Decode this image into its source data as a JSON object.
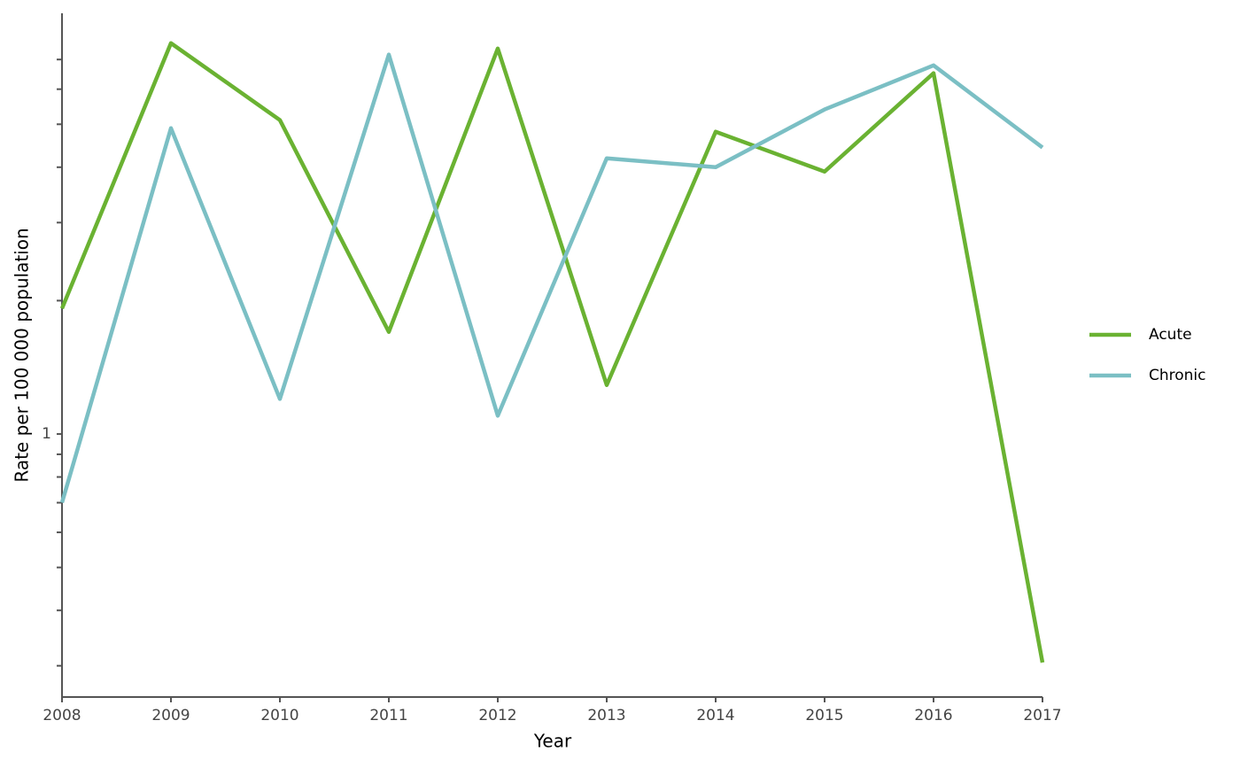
{
  "chart_data": {
    "type": "line",
    "x": [
      2008,
      2009,
      2010,
      2011,
      2012,
      2013,
      2014,
      2015,
      2016,
      2017
    ],
    "series": [
      {
        "name": "Acute",
        "color": "#6ab232",
        "values": [
          1.92,
          7.62,
          5.11,
          1.7,
          7.41,
          1.29,
          4.81,
          3.91,
          6.52,
          0.305
        ]
      },
      {
        "name": "Chronic",
        "color": "#7bbfc4",
        "values": [
          0.7,
          4.9,
          1.2,
          7.18,
          1.1,
          4.19,
          4.0,
          5.4,
          6.79,
          4.43
        ]
      }
    ],
    "x_label": "Year",
    "y_label": "Rate per 100 000 population",
    "xlim": [
      2008,
      2017
    ],
    "xticks": [
      2008,
      2009,
      2010,
      2011,
      2012,
      2013,
      2014,
      2015,
      2016,
      2017
    ],
    "ylim": [
      0.255,
      8.9
    ],
    "yticks": [
      1
    ],
    "minor_yticks": [
      0.3,
      0.4,
      0.5,
      0.6,
      0.7,
      0.8,
      0.9,
      2,
      3,
      4,
      5,
      6,
      7
    ],
    "log_y": true,
    "legend": "right"
  }
}
